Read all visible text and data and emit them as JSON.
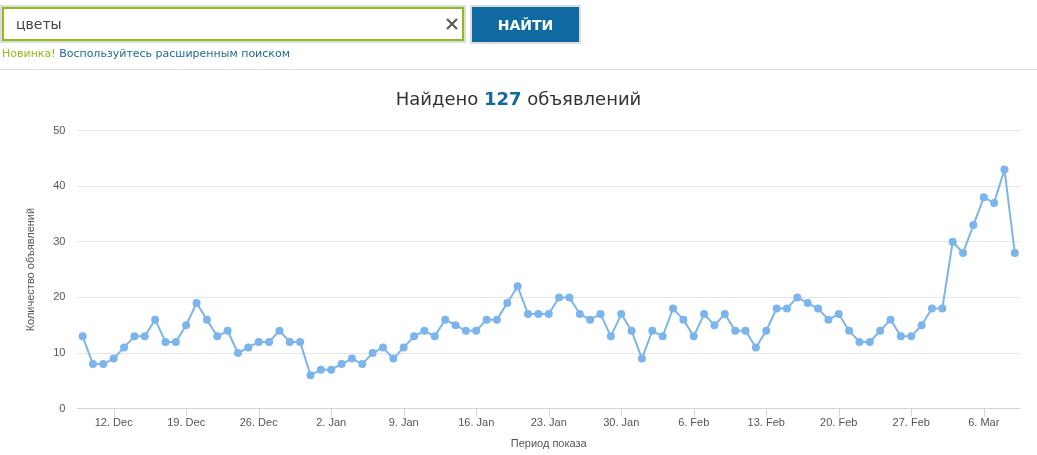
{
  "chart_data": {
    "type": "line",
    "title": "Найдено 127 объявлений",
    "xlabel": "Период показа",
    "ylabel": "Количество объявлений",
    "annotations": [
      "цветы",
      "НАЙТИ",
      "Новинка!",
      "Воспользуйтесь расширенным поиском"
    ],
    "categories": [
      null,
      null,
      null,
      "12. Dec",
      null,
      null,
      null,
      null,
      null,
      null,
      "19. Dec",
      null,
      null,
      null,
      null,
      null,
      null,
      "26. Dec",
      null,
      null,
      null,
      null,
      null,
      null,
      "2. Jan",
      null,
      null,
      null,
      null,
      null,
      null,
      "9. Jan",
      null,
      null,
      null,
      null,
      null,
      null,
      "16. Jan",
      null,
      null,
      null,
      null,
      null,
      null,
      "23. Jan",
      null,
      null,
      null,
      null,
      null,
      null,
      "30. Jan",
      null,
      null,
      null,
      null,
      null,
      null,
      "6. Feb",
      null,
      null,
      null,
      null,
      null,
      null,
      "13. Feb",
      null,
      null,
      null,
      null,
      null,
      null,
      "20. Feb",
      null,
      null,
      null,
      null,
      null,
      null,
      "27. Feb",
      null,
      null,
      null,
      null,
      null,
      null,
      "6. Mar",
      null,
      null,
      null
    ],
    "series": [
      {
        "color": "#7cb5ec",
        "values": [
          13,
          8,
          8,
          9,
          11,
          13,
          13,
          16,
          12,
          12,
          15,
          19,
          16,
          13,
          14,
          10,
          11,
          12,
          12,
          14,
          12,
          12,
          6,
          7,
          7,
          8,
          9,
          8,
          10,
          11,
          9,
          11,
          13,
          14,
          13,
          16,
          15,
          14,
          14,
          16,
          16,
          19,
          22,
          17,
          17,
          17,
          20,
          20,
          17,
          16,
          17,
          13,
          17,
          14,
          9,
          14,
          13,
          18,
          16,
          13,
          17,
          15,
          17,
          14,
          14,
          11,
          14,
          18,
          18,
          20,
          19,
          18,
          16,
          17,
          14,
          12,
          12,
          14,
          16,
          13,
          13,
          15,
          18,
          18,
          30,
          28,
          33,
          38,
          37,
          43,
          28
        ]
      }
    ],
    "ylim": [
      0,
      50
    ],
    "yticks": [
      0,
      10,
      20,
      30,
      40,
      50
    ],
    "grid": "y",
    "legend": false,
    "marker": "circle",
    "line_style": "solid"
  }
}
